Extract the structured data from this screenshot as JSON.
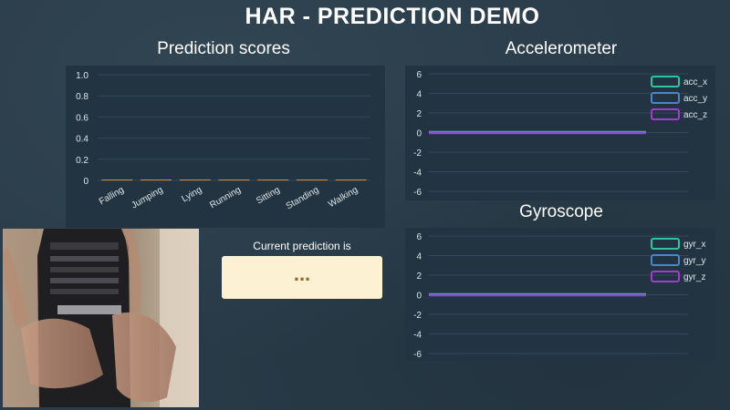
{
  "page": {
    "title": "HAR - PREDICTION DEMO"
  },
  "prediction_scores": {
    "title": "Prediction scores",
    "chart_data": {
      "type": "bar",
      "categories": [
        "Falling",
        "Jumping",
        "Lying",
        "Running",
        "Sitting",
        "Standing",
        "Walking"
      ],
      "values": [
        0,
        0,
        0,
        0,
        0,
        0,
        0
      ],
      "ylim": [
        0,
        1
      ],
      "yticks": [
        "0",
        "0.2",
        "0.4",
        "0.6",
        "0.8",
        "1.0"
      ],
      "grid": true,
      "bar_color": "#d9893a"
    }
  },
  "accelerometer": {
    "title": "Accelerometer",
    "chart_data": {
      "type": "line",
      "ylim": [
        -6,
        6
      ],
      "yticks": [
        "6",
        "4",
        "2",
        "0",
        "-2",
        "-4",
        "-6"
      ],
      "series": [
        {
          "name": "acc_x",
          "color": "#2ec4a0",
          "values": [
            0,
            0
          ]
        },
        {
          "name": "acc_y",
          "color": "#4a86c8",
          "values": [
            0,
            0
          ]
        },
        {
          "name": "acc_z",
          "color": "#a23bd0",
          "values": [
            0,
            0
          ]
        }
      ],
      "legend": "top-right"
    }
  },
  "gyroscope": {
    "title": "Gyroscope",
    "chart_data": {
      "type": "line",
      "ylim": [
        -6,
        6
      ],
      "yticks": [
        "6",
        "4",
        "2",
        "0",
        "-2",
        "-4",
        "-6"
      ],
      "series": [
        {
          "name": "gyr_x",
          "color": "#2ec4a0",
          "values": [
            0,
            0
          ]
        },
        {
          "name": "gyr_y",
          "color": "#4a86c8",
          "values": [
            0,
            0
          ]
        },
        {
          "name": "gyr_z",
          "color": "#a23bd0",
          "values": [
            0,
            0
          ]
        }
      ],
      "legend": "top-right"
    }
  },
  "prediction": {
    "label": "Current prediction is",
    "value": "..."
  }
}
